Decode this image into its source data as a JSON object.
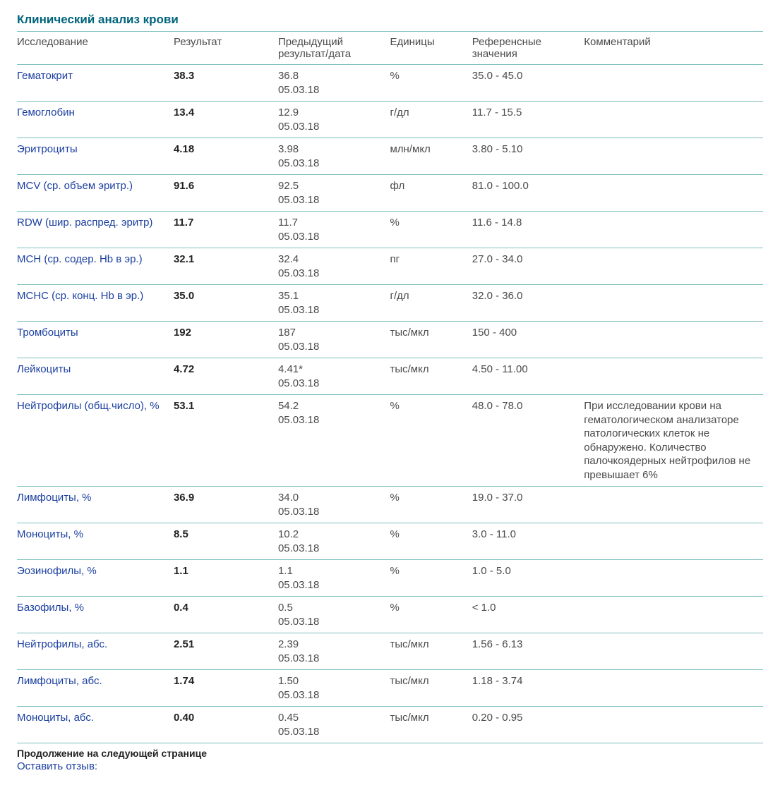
{
  "title": "Клинический анализ крови",
  "columns": {
    "name": "Исследование",
    "result": "Результат",
    "prev": "Предыдущий результат/дата",
    "unit": "Единицы",
    "ref": "Референсные значения",
    "comment": "Комментарий"
  },
  "prev_date": "05.03.18",
  "rows": [
    {
      "name": "Гематокрит",
      "result": "38.3",
      "prev_val": "36.8",
      "unit": "%",
      "ref": "35.0 - 45.0",
      "comment": ""
    },
    {
      "name": "Гемоглобин",
      "result": "13.4",
      "prev_val": "12.9",
      "unit": "г/дл",
      "ref": "11.7 - 15.5",
      "comment": ""
    },
    {
      "name": "Эритроциты",
      "result": "4.18",
      "prev_val": "3.98",
      "unit": "млн/мкл",
      "ref": "3.80 - 5.10",
      "comment": ""
    },
    {
      "name": "MCV (ср. объем эритр.)",
      "result": "91.6",
      "prev_val": "92.5",
      "unit": "фл",
      "ref": "81.0 - 100.0",
      "comment": ""
    },
    {
      "name": "RDW (шир. распред. эритр)",
      "result": "11.7",
      "prev_val": "11.7",
      "unit": "%",
      "ref": "11.6 - 14.8",
      "comment": ""
    },
    {
      "name": "MCH (ср. содер. Hb в эр.)",
      "result": "32.1",
      "prev_val": "32.4",
      "unit": "пг",
      "ref": "27.0 - 34.0",
      "comment": ""
    },
    {
      "name": "MCHC (ср. конц. Hb в эр.)",
      "result": "35.0",
      "prev_val": "35.1",
      "unit": "г/дл",
      "ref": "32.0 - 36.0",
      "comment": ""
    },
    {
      "name": "Тромбоциты",
      "result": "192",
      "prev_val": "187",
      "unit": "тыс/мкл",
      "ref": "150 - 400",
      "comment": ""
    },
    {
      "name": "Лейкоциты",
      "result": "4.72",
      "prev_val": "4.41*",
      "unit": "тыс/мкл",
      "ref": "4.50 - 11.00",
      "comment": ""
    },
    {
      "name": "Нейтрофилы (общ.число), %",
      "result": "53.1",
      "prev_val": "54.2",
      "unit": "%",
      "ref": "48.0 - 78.0",
      "comment": "При исследовании крови на гематологическом анализаторе патологических клеток не обнаружено. Количество палочкоядерных нейтрофилов не превышает 6%"
    },
    {
      "name": "Лимфоциты, %",
      "result": "36.9",
      "prev_val": "34.0",
      "unit": "%",
      "ref": "19.0 - 37.0",
      "comment": ""
    },
    {
      "name": "Моноциты, %",
      "result": "8.5",
      "prev_val": "10.2",
      "unit": "%",
      "ref": "3.0 - 11.0",
      "comment": ""
    },
    {
      "name": "Эозинофилы, %",
      "result": "1.1",
      "prev_val": "1.1",
      "unit": "%",
      "ref": "1.0 - 5.0",
      "comment": ""
    },
    {
      "name": "Базофилы, %",
      "result": "0.4",
      "prev_val": "0.5",
      "unit": "%",
      "ref": "< 1.0",
      "comment": ""
    },
    {
      "name": "Нейтрофилы, абс.",
      "result": "2.51",
      "prev_val": "2.39",
      "unit": "тыс/мкл",
      "ref": "1.56 - 6.13",
      "comment": ""
    },
    {
      "name": "Лимфоциты, абс.",
      "result": "1.74",
      "prev_val": "1.50",
      "unit": "тыс/мкл",
      "ref": "1.18 - 3.74",
      "comment": ""
    },
    {
      "name": "Моноциты, абс.",
      "result": "0.40",
      "prev_val": "0.45",
      "unit": "тыс/мкл",
      "ref": "0.20 - 0.95",
      "comment": ""
    }
  ],
  "footer_continue": "Продолжение на следующей странице",
  "footer_link": "Оставить отзыв:",
  "style": {
    "title_color": "#00647c",
    "name_color": "#1a3fa0",
    "text_color": "#4a4a4a",
    "border_color": "#7fbfbf",
    "background": "#ffffff",
    "font_family": "Verdana, Geneva, sans-serif",
    "font_size_base": 15,
    "font_size_title": 17,
    "col_widths_pct": {
      "name": 21,
      "result": 14,
      "prev": 15,
      "unit": 11,
      "ref": 15,
      "comment": 24
    }
  }
}
